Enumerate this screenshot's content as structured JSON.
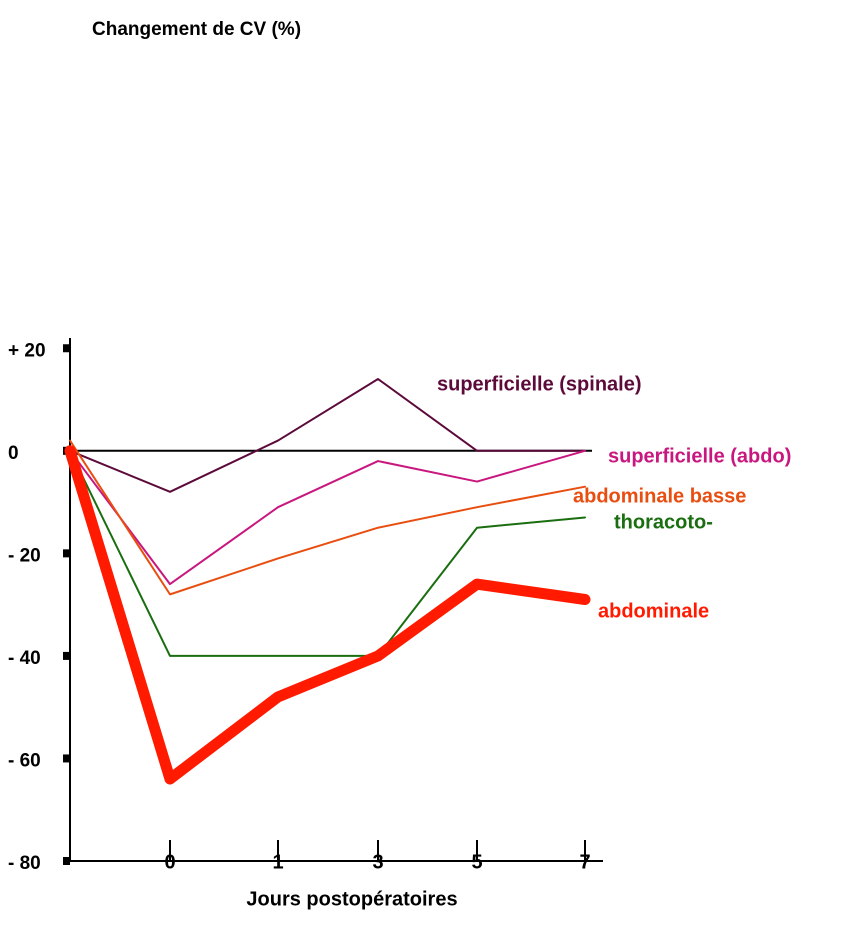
{
  "chart_data": {
    "type": "line",
    "title": "Changement de CV (%)",
    "x_label": "Jours postopératoires",
    "categories": [
      null,
      "0",
      "1",
      "3",
      "5",
      "7"
    ],
    "ylim": [
      -80,
      22
    ],
    "yticks": [
      {
        "value": 20,
        "label": "+ 20"
      },
      0,
      {
        "value": -20,
        "label": "- 20"
      },
      {
        "value": -40,
        "label": "- 40"
      },
      {
        "value": -60,
        "label": "- 60"
      },
      {
        "value": -80,
        "label": "- 80"
      }
    ],
    "series": [
      {
        "name": "superficielle (spinale)",
        "color": "#5c0a3a",
        "width": 2,
        "values": [
          0,
          -8,
          2,
          14,
          0,
          0
        ]
      },
      {
        "name": "superficielle (abdo)",
        "color": "#c8177e",
        "width": 2,
        "values": [
          0,
          -26,
          -11,
          -2,
          -6,
          0
        ]
      },
      {
        "name": "abdominale basse",
        "color": "#e84e10",
        "width": 2,
        "values": [
          2,
          -28,
          -21,
          -15,
          -11,
          -7
        ]
      },
      {
        "name": "thoracoto-",
        "color": "#1a6e10",
        "width": 2,
        "values": [
          0,
          -40,
          -40,
          -40,
          -15,
          -13
        ]
      },
      {
        "name": "abdominale",
        "color": "#ff1a00",
        "width": 11,
        "values": [
          0,
          -64,
          -48,
          -40,
          -26,
          -29
        ]
      }
    ]
  }
}
